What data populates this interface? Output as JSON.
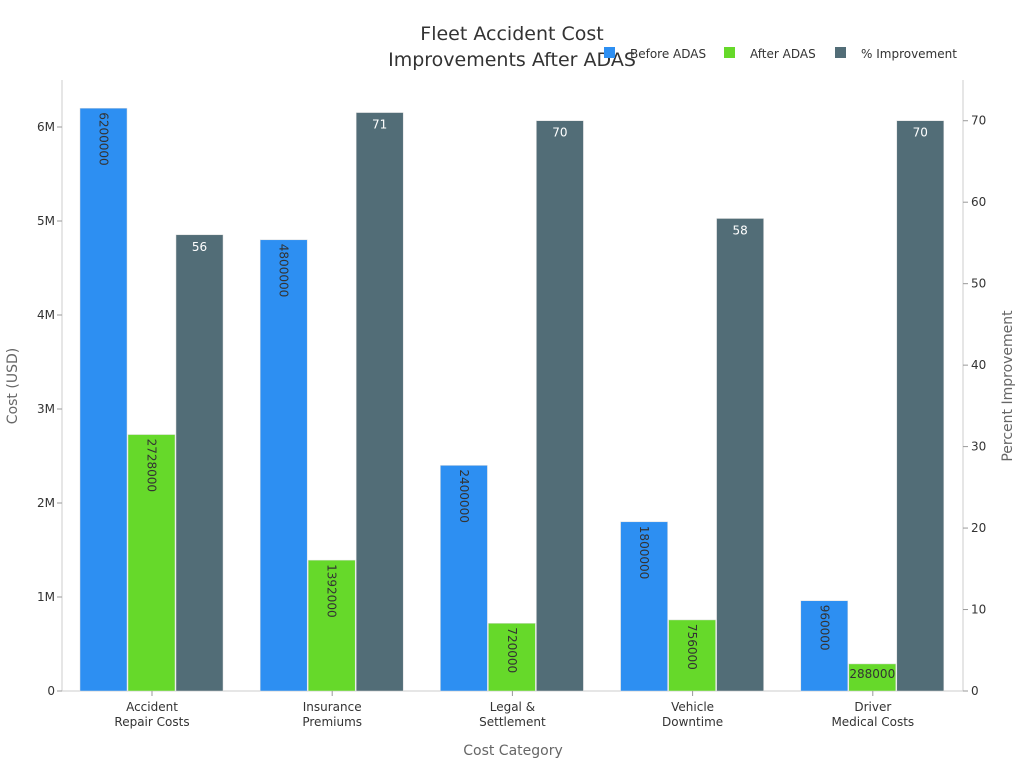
{
  "chart_data": {
    "type": "bar",
    "title_lines": [
      "Fleet Accident Cost",
      "Improvements After ADAS"
    ],
    "xlabel": "Cost Category",
    "ylabel": "Cost (USD)",
    "y2label": "Percent Improvement",
    "ylim": [
      0,
      6500000
    ],
    "y2lim": [
      0,
      75
    ],
    "y_ticks": [
      {
        "value": 0,
        "label": "0"
      },
      {
        "value": 1000000,
        "label": "1M"
      },
      {
        "value": 2000000,
        "label": "2M"
      },
      {
        "value": 3000000,
        "label": "3M"
      },
      {
        "value": 4000000,
        "label": "4M"
      },
      {
        "value": 5000000,
        "label": "5M"
      },
      {
        "value": 6000000,
        "label": "6M"
      }
    ],
    "y2_ticks": [
      {
        "value": 0,
        "label": "0"
      },
      {
        "value": 10,
        "label": "10"
      },
      {
        "value": 20,
        "label": "20"
      },
      {
        "value": 30,
        "label": "30"
      },
      {
        "value": 40,
        "label": "40"
      },
      {
        "value": 50,
        "label": "50"
      },
      {
        "value": 60,
        "label": "60"
      },
      {
        "value": 70,
        "label": "70"
      }
    ],
    "categories": [
      [
        "Accident",
        "Repair Costs"
      ],
      [
        "Insurance",
        "Premiums"
      ],
      [
        "Legal &",
        "Settlement"
      ],
      [
        "Vehicle",
        "Downtime"
      ],
      [
        "Driver",
        "Medical Costs"
      ]
    ],
    "series": [
      {
        "name": "Before ADAS",
        "axis": "left",
        "color": "#2d8ff2",
        "label_color": "#333333",
        "values": [
          6200000,
          4800000,
          2400000,
          1800000,
          960000
        ],
        "labels": [
          "6200000",
          "4800000",
          "2400000",
          "1800000",
          "960000"
        ]
      },
      {
        "name": "After ADAS",
        "axis": "left",
        "color": "#66d92a",
        "label_color": "#333333",
        "values": [
          2728000,
          1392000,
          720000,
          756000,
          288000
        ],
        "labels": [
          "2728000",
          "1392000",
          "720000",
          "756000",
          "288000"
        ]
      },
      {
        "name": "% Improvement",
        "axis": "right",
        "color": "#526d77",
        "label_color": "#ffffff",
        "values": [
          56,
          71,
          70,
          58,
          70
        ],
        "labels": [
          "56",
          "71",
          "70",
          "58",
          "70"
        ]
      }
    ],
    "legend_position": "top-right"
  }
}
